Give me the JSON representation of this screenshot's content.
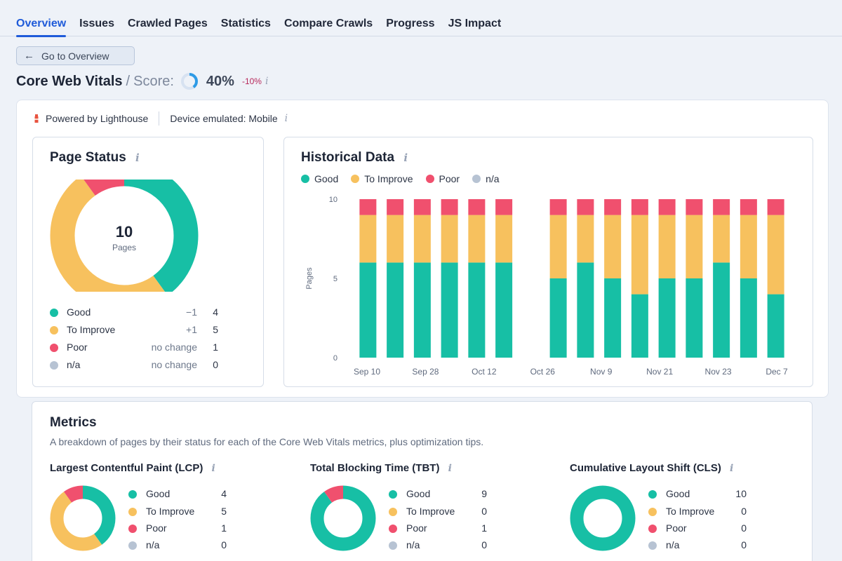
{
  "tabs": [
    "Overview",
    "Issues",
    "Crawled Pages",
    "Statistics",
    "Compare Crawls",
    "Progress",
    "JS Impact"
  ],
  "back_button": "Go to Overview",
  "header": {
    "title": "Core Web Vitals",
    "separator": "/",
    "score_label": "Score:",
    "score_value": "40%",
    "score_fraction": 0.4,
    "score_delta": "-10%"
  },
  "info_glyph": "i",
  "source": {
    "powered_by": "Powered by Lighthouse",
    "device": "Device emulated: Mobile"
  },
  "colors": {
    "good": "#17bfa5",
    "improve": "#f7c15e",
    "poor": "#f0506e",
    "na": "#b7c3d3",
    "accent": "#1f5bd9"
  },
  "page_status": {
    "title": "Page Status",
    "total": "10",
    "total_label": "Pages",
    "rows": [
      {
        "label": "Good",
        "change": "−1",
        "count": "4",
        "value": 4,
        "key": "good"
      },
      {
        "label": "To Improve",
        "change": "+1",
        "count": "5",
        "value": 5,
        "key": "improve"
      },
      {
        "label": "Poor",
        "change": "no change",
        "count": "1",
        "value": 1,
        "key": "poor"
      },
      {
        "label": "n/a",
        "change": "no change",
        "count": "0",
        "value": 0,
        "key": "na"
      }
    ]
  },
  "historical": {
    "title": "Historical Data",
    "legend": [
      "Good",
      "To Improve",
      "Poor",
      "n/a"
    ]
  },
  "chart_data": {
    "type": "bar",
    "stacked": true,
    "title": "Historical Data",
    "ylabel": "Pages",
    "xlabel": "",
    "ylim": [
      0,
      10
    ],
    "yticks": [
      0,
      5,
      10
    ],
    "xtick_labels": [
      "Sep 10",
      "Sep 28",
      "Oct 12",
      "Oct 26",
      "Nov 9",
      "Nov 21",
      "Nov 23",
      "Dec 7"
    ],
    "slots": 16,
    "series": [
      {
        "name": "Good",
        "values": [
          6,
          6,
          6,
          6,
          6,
          6,
          null,
          5,
          6,
          5,
          4,
          5,
          5,
          6,
          5,
          4
        ]
      },
      {
        "name": "To Improve",
        "values": [
          3,
          3,
          3,
          3,
          3,
          3,
          null,
          4,
          3,
          4,
          5,
          4,
          4,
          3,
          4,
          5
        ]
      },
      {
        "name": "Poor",
        "values": [
          1,
          1,
          1,
          1,
          1,
          1,
          null,
          1,
          1,
          1,
          1,
          1,
          1,
          1,
          1,
          1
        ]
      },
      {
        "name": "n/a",
        "values": [
          0,
          0,
          0,
          0,
          0,
          0,
          null,
          0,
          0,
          0,
          0,
          0,
          0,
          0,
          0,
          0
        ]
      }
    ]
  },
  "metrics": {
    "title": "Metrics",
    "description": "A breakdown of pages by their status for each of the Core Web Vitals metrics, plus optimization tips.",
    "items": [
      {
        "title": "Largest Contentful Paint (LCP)",
        "rows": [
          {
            "label": "Good",
            "count": "4",
            "value": 4,
            "key": "good"
          },
          {
            "label": "To Improve",
            "count": "5",
            "value": 5,
            "key": "improve"
          },
          {
            "label": "Poor",
            "count": "1",
            "value": 1,
            "key": "poor"
          },
          {
            "label": "n/a",
            "count": "0",
            "value": 0,
            "key": "na"
          }
        ]
      },
      {
        "title": "Total Blocking Time (TBT)",
        "rows": [
          {
            "label": "Good",
            "count": "9",
            "value": 9,
            "key": "good"
          },
          {
            "label": "To Improve",
            "count": "0",
            "value": 0,
            "key": "improve"
          },
          {
            "label": "Poor",
            "count": "1",
            "value": 1,
            "key": "poor"
          },
          {
            "label": "n/a",
            "count": "0",
            "value": 0,
            "key": "na"
          }
        ]
      },
      {
        "title": "Cumulative Layout Shift (CLS)",
        "rows": [
          {
            "label": "Good",
            "count": "10",
            "value": 10,
            "key": "good"
          },
          {
            "label": "To Improve",
            "count": "0",
            "value": 0,
            "key": "improve"
          },
          {
            "label": "Poor",
            "count": "0",
            "value": 0,
            "key": "poor"
          },
          {
            "label": "n/a",
            "count": "0",
            "value": 0,
            "key": "na"
          }
        ]
      }
    ]
  }
}
